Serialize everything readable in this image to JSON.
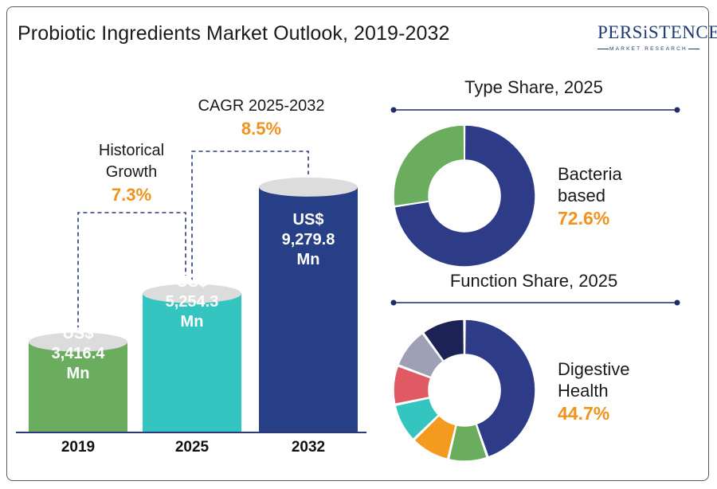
{
  "title": "Probiotic Ingredients Market Outlook, 2019-2032",
  "logo": {
    "word": "PERSiSTENCE",
    "sub": "MARKET RESEARCH"
  },
  "colors": {
    "bar_2019": "#6aad5e",
    "bar_2025": "#35c5c0",
    "bar_2032": "#263f86",
    "bar_top": "#dcdcdc",
    "accent": "#f2921c",
    "dash": "#2a3a7a"
  },
  "annotations": {
    "historical": {
      "label_line1": "Historical",
      "label_line2": "Growth",
      "value": "7.3%"
    },
    "cagr": {
      "label": "CAGR 2025-2032",
      "value": "8.5%"
    }
  },
  "type_share": {
    "title": "Type Share, 2025",
    "label_line1": "Bacteria",
    "label_line2": "based",
    "value": "72.6%"
  },
  "function_share": {
    "title": "Function Share, 2025",
    "label_line1": "Digestive",
    "label_line2": "Health",
    "value": "44.7%"
  },
  "chart_data": [
    {
      "type": "bar",
      "categories": [
        "2019",
        "2025",
        "2032"
      ],
      "values": [
        3416.4,
        5254.3,
        9279.8
      ],
      "data_labels": [
        [
          "US$",
          "3,416.4",
          "Mn"
        ],
        [
          "US$",
          "5,254.3",
          "Mn"
        ],
        [
          "US$",
          "9,279.8",
          "Mn"
        ]
      ],
      "unit": "US$ Mn"
    },
    {
      "type": "pie",
      "title": "Type Share, 2025",
      "donut": true,
      "slices": [
        {
          "value": 72.6,
          "color": "#2e3b86"
        },
        {
          "value": 27.4,
          "color": "#6aad5e"
        }
      ]
    },
    {
      "type": "pie",
      "title": "Function Share, 2025",
      "donut": true,
      "slices": [
        {
          "value": 44.7,
          "color": "#2e3b86"
        },
        {
          "value": 9.0,
          "color": "#6aad5e"
        },
        {
          "value": 9.0,
          "color": "#f39a1f"
        },
        {
          "value": 9.0,
          "color": "#35c5c0"
        },
        {
          "value": 9.0,
          "color": "#e05a63"
        },
        {
          "value": 9.3,
          "color": "#9ea0b5"
        },
        {
          "value": 10.0,
          "color": "#1c2256"
        }
      ]
    }
  ]
}
